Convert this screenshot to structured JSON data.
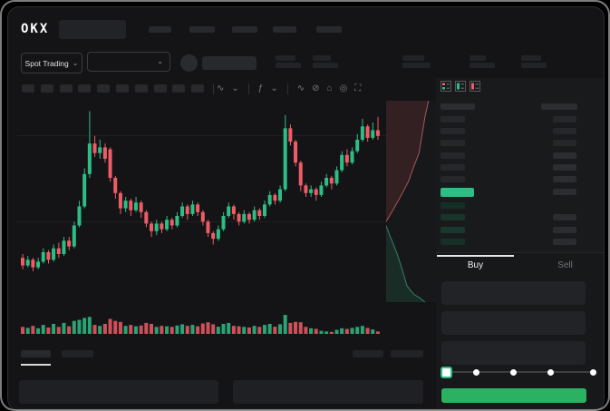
{
  "app": {
    "logo_text": "OKX"
  },
  "colors": {
    "green": "#2ebd85",
    "red": "#ee5c66",
    "button_green": "#2ab162",
    "bid_tints": [
      "#142f26",
      "#173529",
      "#19392d",
      "#153026"
    ],
    "grid": "#1d1f21"
  },
  "header": {
    "market_selector_label": "Spot Trading",
    "market_selector_chevron": "⌄",
    "pair_dropdown_chevron": "⌄"
  },
  "toolbar": {
    "items": [
      {
        "name": "chart-style-icon",
        "glyph": "∿"
      },
      {
        "name": "chevron-down-icon",
        "glyph": "⌄"
      },
      {
        "divider": true
      },
      {
        "name": "indicator-icon",
        "glyph": "ƒ"
      },
      {
        "name": "chevron-down-icon",
        "glyph": "⌄"
      },
      {
        "divider": true
      },
      {
        "name": "trendline-icon",
        "glyph": "∿"
      },
      {
        "name": "brush-icon",
        "glyph": "⊘"
      },
      {
        "name": "screenshot-icon",
        "glyph": "⌂"
      },
      {
        "name": "settings-icon",
        "glyph": "◎"
      },
      {
        "name": "expand-icon",
        "glyph": "⛶"
      }
    ]
  },
  "orderbook": {
    "view_toggles": [
      "book-all-icon",
      "book-bids-icon",
      "book-asks-icon"
    ],
    "asks": [
      {
        "l": 27,
        "r": 26,
        "rb": 0
      },
      {
        "l": 27,
        "r": 26,
        "rb": 0
      },
      {
        "l": 27,
        "r": 26,
        "rb": 0
      },
      {
        "l": 27,
        "r": 26,
        "rb": 1
      },
      {
        "l": 27,
        "r": 26,
        "rb": 1
      },
      {
        "l": 27,
        "r": 26,
        "rb": 1
      }
    ],
    "mid_bar_width": 37,
    "bids": [
      {
        "l": 27,
        "tint": 0,
        "r": 0
      },
      {
        "l": 27,
        "tint": 1,
        "r": 26
      },
      {
        "l": 27,
        "tint": 2,
        "r": 26
      },
      {
        "l": 27,
        "tint": 3,
        "r": 26
      }
    ],
    "tabs": {
      "buy": "Buy",
      "sell": "Sell"
    }
  },
  "chart_data": {
    "type": "candlestick",
    "title": "",
    "xlabel": "",
    "ylabel": "",
    "note": "no axis labels visible; values normalized 0-100 price scale read from pixel positions",
    "grid": "faint horizontal lines",
    "candles": [
      [
        18,
        14,
        20,
        12
      ],
      [
        14,
        17,
        19,
        13
      ],
      [
        17,
        13,
        18,
        11
      ],
      [
        13,
        16,
        18,
        12
      ],
      [
        16,
        21,
        23,
        15
      ],
      [
        21,
        17,
        22,
        15
      ],
      [
        17,
        23,
        25,
        16
      ],
      [
        23,
        20,
        26,
        18
      ],
      [
        20,
        27,
        29,
        19
      ],
      [
        27,
        24,
        29,
        22
      ],
      [
        24,
        35,
        37,
        23
      ],
      [
        35,
        45,
        48,
        34
      ],
      [
        45,
        62,
        65,
        44
      ],
      [
        62,
        78,
        95,
        60
      ],
      [
        78,
        73,
        82,
        71
      ],
      [
        73,
        76,
        80,
        70
      ],
      [
        76,
        70,
        78,
        68
      ],
      [
        75,
        60,
        76,
        58
      ],
      [
        60,
        52,
        61,
        49
      ],
      [
        52,
        44,
        53,
        41
      ],
      [
        44,
        48,
        50,
        42
      ],
      [
        48,
        43,
        49,
        40
      ],
      [
        43,
        47,
        50,
        42
      ],
      [
        47,
        42,
        48,
        39
      ],
      [
        42,
        36,
        43,
        34
      ],
      [
        36,
        32,
        37,
        29
      ],
      [
        32,
        36,
        38,
        30
      ],
      [
        36,
        33,
        37,
        31
      ],
      [
        33,
        38,
        40,
        32
      ],
      [
        38,
        35,
        39,
        33
      ],
      [
        35,
        40,
        42,
        34
      ],
      [
        40,
        45,
        47,
        39
      ],
      [
        45,
        41,
        46,
        38
      ],
      [
        41,
        46,
        48,
        40
      ],
      [
        46,
        42,
        47,
        40
      ],
      [
        42,
        37,
        43,
        35
      ],
      [
        37,
        31,
        38,
        29
      ],
      [
        31,
        28,
        32,
        25
      ],
      [
        28,
        33,
        35,
        27
      ],
      [
        33,
        40,
        42,
        32
      ],
      [
        40,
        45,
        47,
        39
      ],
      [
        45,
        41,
        46,
        38
      ],
      [
        41,
        37,
        42,
        35
      ],
      [
        37,
        41,
        43,
        36
      ],
      [
        41,
        38,
        42,
        36
      ],
      [
        38,
        43,
        45,
        37
      ],
      [
        43,
        40,
        44,
        38
      ],
      [
        40,
        46,
        48,
        39
      ],
      [
        46,
        51,
        53,
        45
      ],
      [
        51,
        48,
        52,
        46
      ],
      [
        48,
        54,
        56,
        47
      ],
      [
        54,
        86,
        93,
        53
      ],
      [
        86,
        79,
        88,
        77
      ],
      [
        79,
        68,
        80,
        66
      ],
      [
        68,
        56,
        69,
        53
      ],
      [
        56,
        52,
        57,
        50
      ],
      [
        52,
        54,
        56,
        50
      ],
      [
        54,
        51,
        55,
        48
      ],
      [
        51,
        56,
        58,
        50
      ],
      [
        56,
        60,
        62,
        55
      ],
      [
        60,
        57,
        61,
        54
      ],
      [
        57,
        64,
        66,
        56
      ],
      [
        64,
        72,
        74,
        63
      ],
      [
        72,
        68,
        75,
        66
      ],
      [
        68,
        74,
        76,
        67
      ],
      [
        74,
        80,
        83,
        73
      ],
      [
        80,
        87,
        91,
        79
      ],
      [
        87,
        81,
        88,
        79
      ],
      [
        81,
        85,
        89,
        80
      ],
      [
        85,
        82,
        92,
        80
      ]
    ],
    "volumes": [
      35,
      30,
      40,
      28,
      45,
      32,
      50,
      35,
      55,
      38,
      65,
      70,
      80,
      85,
      45,
      40,
      50,
      75,
      65,
      60,
      40,
      45,
      38,
      42,
      55,
      50,
      35,
      40,
      38,
      35,
      42,
      48,
      40,
      45,
      38,
      52,
      58,
      48,
      36,
      50,
      55,
      40,
      38,
      35,
      32,
      40,
      35,
      45,
      50,
      36,
      48,
      95,
      55,
      60,
      58,
      35,
      28,
      25,
      15,
      12,
      10,
      20,
      28,
      25,
      30,
      35,
      40,
      30,
      22,
      12
    ],
    "depth": {
      "asks": [
        [
          85,
          0
        ],
        [
          78,
          8
        ],
        [
          74,
          14
        ],
        [
          70,
          20
        ],
        [
          66,
          26
        ],
        [
          55,
          33
        ],
        [
          45,
          40
        ],
        [
          28,
          48
        ],
        [
          12,
          55
        ],
        [
          0,
          60
        ]
      ],
      "bids": [
        [
          0,
          62
        ],
        [
          6,
          66
        ],
        [
          14,
          71
        ],
        [
          22,
          76
        ],
        [
          30,
          82
        ],
        [
          36,
          87
        ],
        [
          42,
          92
        ],
        [
          55,
          96
        ],
        [
          68,
          98
        ],
        [
          78,
          100
        ]
      ]
    }
  }
}
